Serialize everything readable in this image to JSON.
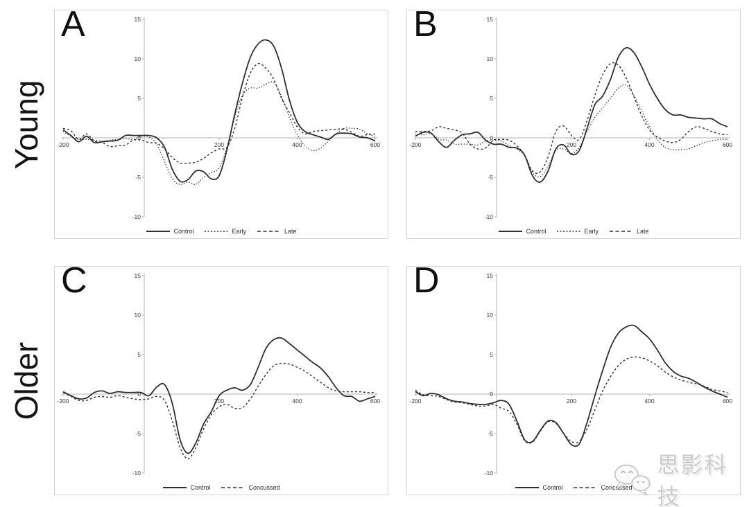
{
  "figure": {
    "row_labels": [
      {
        "id": "young",
        "text": "Young"
      },
      {
        "id": "older",
        "text": "Older"
      }
    ],
    "watermark": {
      "text": "思影科技",
      "icon": "wechat-bubbles-icon"
    },
    "colors": {
      "line": "#2e2e2e",
      "axis": "#b3b3b3",
      "panel_border": "#d2d2d2",
      "text": "#3a3a3a",
      "watermark": "#cccccc"
    }
  },
  "axes": {
    "xlim": [
      -200,
      600
    ],
    "ylim": [
      -10,
      15
    ],
    "y_ticks": [
      15,
      10,
      5,
      0,
      -5,
      -10
    ],
    "x_tick_labels": [
      -200,
      200,
      400,
      600
    ],
    "x_origin_label": "0",
    "grid": false,
    "legend_position": "bottom-center"
  },
  "chart_data": [
    {
      "panel": "A",
      "row": "Young",
      "type": "line",
      "x": [
        -200,
        -180,
        -160,
        -140,
        -120,
        -100,
        -80,
        -60,
        -40,
        -20,
        0,
        20,
        40,
        60,
        80,
        100,
        120,
        140,
        160,
        180,
        200,
        220,
        240,
        260,
        280,
        300,
        320,
        340,
        360,
        380,
        400,
        420,
        440,
        460,
        480,
        500,
        520,
        540,
        560,
        580,
        600
      ],
      "series": [
        {
          "name": "Control",
          "style": "solid",
          "values": [
            1.0,
            0.3,
            -0.5,
            0.2,
            -0.6,
            -0.5,
            -0.4,
            -0.3,
            0.3,
            0.3,
            0.3,
            0.3,
            0.0,
            -1.2,
            -4.0,
            -5.5,
            -5.3,
            -4.2,
            -4.3,
            -5.2,
            -4.8,
            -1.5,
            3.0,
            7.0,
            10.2,
            11.9,
            12.4,
            11.6,
            8.8,
            4.8,
            2.0,
            0.8,
            0.4,
            0.1,
            -0.2,
            0.5,
            0.6,
            0.5,
            0.1,
            0.0,
            -0.4
          ]
        },
        {
          "name": "Early",
          "style": "dotted",
          "values": [
            0.8,
            0.2,
            -0.2,
            -0.2,
            -0.3,
            -0.4,
            -0.3,
            -0.2,
            -0.1,
            -0.2,
            0.2,
            0.1,
            -0.8,
            -3.0,
            -5.2,
            -5.9,
            -5.6,
            -5.9,
            -5.0,
            -4.4,
            -3.8,
            -1.2,
            2.6,
            5.4,
            6.3,
            6.3,
            6.8,
            7.0,
            5.2,
            2.6,
            0.4,
            -1.0,
            -1.6,
            -1.3,
            -0.4,
            0.5,
            1.2,
            1.2,
            1.1,
            0.5,
            0.2
          ]
        },
        {
          "name": "Late",
          "style": "dashed",
          "values": [
            1.2,
            0.9,
            -0.2,
            0.5,
            -0.4,
            -0.6,
            -1.1,
            -1.0,
            -0.9,
            -0.3,
            -0.3,
            -0.6,
            -0.7,
            -1.4,
            -2.5,
            -3.2,
            -3.2,
            -3.1,
            -2.6,
            -1.9,
            -1.4,
            -1.2,
            1.2,
            5.2,
            8.2,
            9.4,
            8.8,
            7.4,
            5.0,
            3.2,
            1.4,
            0.5,
            0.8,
            0.9,
            1.0,
            1.1,
            1.1,
            0.7,
            0.2,
            0.4,
            0.5
          ]
        }
      ]
    },
    {
      "panel": "B",
      "row": "Young",
      "type": "line",
      "x": [
        -200,
        -180,
        -160,
        -140,
        -120,
        -100,
        -80,
        -60,
        -40,
        -20,
        0,
        20,
        40,
        60,
        80,
        100,
        120,
        140,
        160,
        180,
        200,
        220,
        240,
        260,
        280,
        300,
        320,
        340,
        360,
        380,
        400,
        420,
        440,
        460,
        480,
        500,
        520,
        540,
        560,
        580,
        600
      ],
      "series": [
        {
          "name": "Control",
          "style": "solid",
          "values": [
            0.2,
            0.7,
            0.6,
            -0.5,
            -1.2,
            -0.3,
            0.4,
            0.5,
            0.7,
            -0.3,
            -0.8,
            -0.8,
            -1.2,
            -1.3,
            -2.2,
            -4.8,
            -5.6,
            -4.2,
            -1.4,
            -0.9,
            -2.1,
            -1.6,
            1.2,
            4.2,
            5.3,
            7.4,
            10.2,
            11.4,
            10.8,
            9.0,
            6.8,
            5.0,
            3.6,
            2.9,
            2.9,
            2.6,
            2.5,
            2.4,
            2.4,
            1.8,
            1.4
          ]
        },
        {
          "name": "Early",
          "style": "dotted",
          "values": [
            0.5,
            0.4,
            0.5,
            -0.2,
            -0.3,
            -0.8,
            -0.8,
            -0.8,
            -0.9,
            -0.4,
            -0.3,
            -0.4,
            -1.0,
            -1.4,
            -2.3,
            -4.4,
            -4.9,
            -3.6,
            -1.6,
            -1.4,
            -2.0,
            -1.2,
            0.8,
            2.6,
            3.8,
            5.0,
            6.3,
            6.7,
            5.4,
            3.4,
            1.4,
            -0.2,
            -1.2,
            -1.5,
            -1.5,
            -1.4,
            -1.0,
            -0.6,
            -0.4,
            -0.2,
            -0.2
          ]
        },
        {
          "name": "Late",
          "style": "dashed",
          "values": [
            0.8,
            0.8,
            0.9,
            1.4,
            1.2,
            1.0,
            0.6,
            -0.8,
            -1.4,
            -1.3,
            -0.3,
            -0.2,
            -0.3,
            -1.0,
            -2.2,
            -4.2,
            -4.3,
            -2.4,
            0.8,
            1.5,
            0.3,
            -0.2,
            2.2,
            5.4,
            8.0,
            9.4,
            9.2,
            7.6,
            5.2,
            2.8,
            1.0,
            0.1,
            -0.4,
            -0.6,
            -0.2,
            0.8,
            1.4,
            1.2,
            0.8,
            0.5,
            0.4
          ]
        }
      ]
    },
    {
      "panel": "C",
      "row": "Older",
      "type": "line",
      "x": [
        -200,
        -180,
        -160,
        -140,
        -120,
        -100,
        -80,
        -60,
        -40,
        -20,
        0,
        20,
        40,
        60,
        80,
        100,
        120,
        140,
        160,
        180,
        200,
        220,
        240,
        260,
        280,
        300,
        320,
        340,
        360,
        380,
        400,
        420,
        440,
        460,
        480,
        500,
        520,
        540,
        560,
        580,
        600
      ],
      "series": [
        {
          "name": "Control",
          "style": "solid",
          "values": [
            0.3,
            -0.2,
            -0.6,
            -0.5,
            0.2,
            0.4,
            0.1,
            0.3,
            0.2,
            0.2,
            0.2,
            -0.2,
            0.9,
            1.2,
            -1.2,
            -5.8,
            -7.5,
            -6.2,
            -3.8,
            -2.2,
            -0.2,
            0.5,
            0.8,
            0.5,
            1.2,
            3.4,
            5.8,
            6.9,
            7.1,
            6.4,
            5.6,
            4.8,
            4.0,
            3.3,
            2.2,
            0.8,
            -0.2,
            -0.3,
            -0.9,
            -0.6,
            -0.3
          ]
        },
        {
          "name": "Concussed",
          "style": "dashed",
          "values": [
            0.2,
            -0.3,
            -0.8,
            -0.8,
            -0.4,
            -0.3,
            -0.4,
            -0.2,
            -0.4,
            -0.6,
            -0.7,
            -0.6,
            -0.3,
            -0.8,
            -3.4,
            -6.8,
            -8.2,
            -6.8,
            -4.4,
            -2.6,
            -1.6,
            -1.3,
            -1.8,
            -1.7,
            -0.6,
            1.0,
            2.5,
            3.6,
            3.9,
            3.8,
            3.4,
            2.9,
            2.2,
            1.5,
            0.8,
            0.4,
            0.3,
            0.3,
            0.3,
            0.2,
            0.2
          ]
        }
      ]
    },
    {
      "panel": "D",
      "row": "Older",
      "type": "line",
      "x": [
        -200,
        -180,
        -160,
        -140,
        -120,
        -100,
        -80,
        -60,
        -40,
        -20,
        0,
        20,
        40,
        60,
        80,
        100,
        120,
        140,
        160,
        180,
        200,
        220,
        240,
        260,
        280,
        300,
        320,
        340,
        360,
        380,
        400,
        420,
        440,
        460,
        480,
        500,
        520,
        540,
        560,
        580,
        600
      ],
      "series": [
        {
          "name": "Control",
          "style": "solid",
          "values": [
            0.3,
            -0.2,
            0.1,
            -0.1,
            -0.6,
            -0.9,
            -1.0,
            -1.2,
            -1.3,
            -1.3,
            -1.1,
            -0.8,
            -1.3,
            -3.4,
            -5.8,
            -6.0,
            -4.6,
            -3.4,
            -3.6,
            -5.0,
            -6.4,
            -6.3,
            -3.6,
            -0.2,
            3.0,
            5.9,
            7.7,
            8.5,
            8.7,
            7.9,
            7.0,
            5.6,
            4.0,
            2.9,
            2.3,
            2.0,
            1.5,
            0.9,
            0.4,
            0.0,
            -0.4
          ]
        },
        {
          "name": "Concussed",
          "style": "dashed",
          "values": [
            0.5,
            -0.1,
            -0.2,
            -0.3,
            -0.7,
            -1.0,
            -1.1,
            -1.3,
            -1.5,
            -1.5,
            -1.3,
            -1.8,
            -2.2,
            -3.8,
            -5.9,
            -6.1,
            -4.7,
            -3.5,
            -3.7,
            -5.0,
            -6.0,
            -6.0,
            -4.4,
            -2.0,
            0.4,
            2.2,
            3.6,
            4.4,
            4.7,
            4.6,
            4.2,
            3.6,
            2.8,
            2.2,
            1.8,
            1.5,
            1.3,
            1.0,
            0.6,
            0.4,
            0.2
          ]
        }
      ]
    }
  ]
}
